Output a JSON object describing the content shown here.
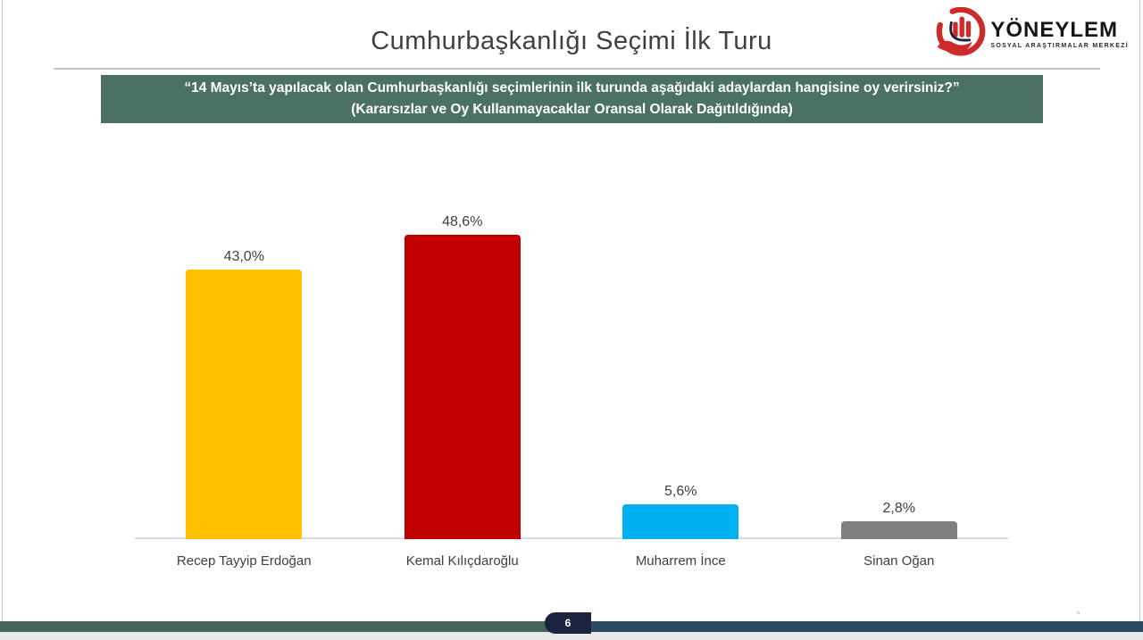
{
  "slide": {
    "title": "Cumhurbaşkanlığı Seçimi İlk Turu",
    "banner": {
      "line1": "“14 Mayıs’ta yapılacak olan Cumhurbaşkanlığı seçimlerinin ilk turunda aşağıdaki adaylardan hangisine oy verirsiniz?”",
      "line2": "(Kararsızlar ve Oy Kullanmayacaklar Oransal Olarak Dağıtıldığında)",
      "bg_color": "#4A7164"
    },
    "page_number": "6"
  },
  "logo": {
    "name": "YÖNEYLEM",
    "subtitle": "SOSYAL ARAŞTIRMALAR MERKEZİ",
    "icon": "hand-with-bars-icon",
    "accent_color": "#CE2A2A"
  },
  "chart_data": {
    "type": "bar",
    "title": "Cumhurbaşkanlığı Seçimi İlk Turu",
    "categories": [
      "Recep Tayyip Erdoğan",
      "Kemal Kılıçdaroğlu",
      "Muharrem İnce",
      "Sinan Oğan"
    ],
    "values": [
      43.0,
      48.6,
      5.6,
      2.8
    ],
    "labels": [
      "43,0%",
      "48,6%",
      "5,6%",
      "2,8%"
    ],
    "colors": [
      "#FFC000",
      "#C00000",
      "#00B0F0",
      "#7F7F7F"
    ],
    "xlabel": "",
    "ylabel": "",
    "ylim": [
      0,
      53
    ],
    "grid": false,
    "legend": false,
    "value_suffix": "%",
    "decimal_separator": ","
  },
  "footer": {
    "left_color": "#44655A",
    "right_color": "#2C4A63",
    "badge_color": "#1B2340"
  }
}
